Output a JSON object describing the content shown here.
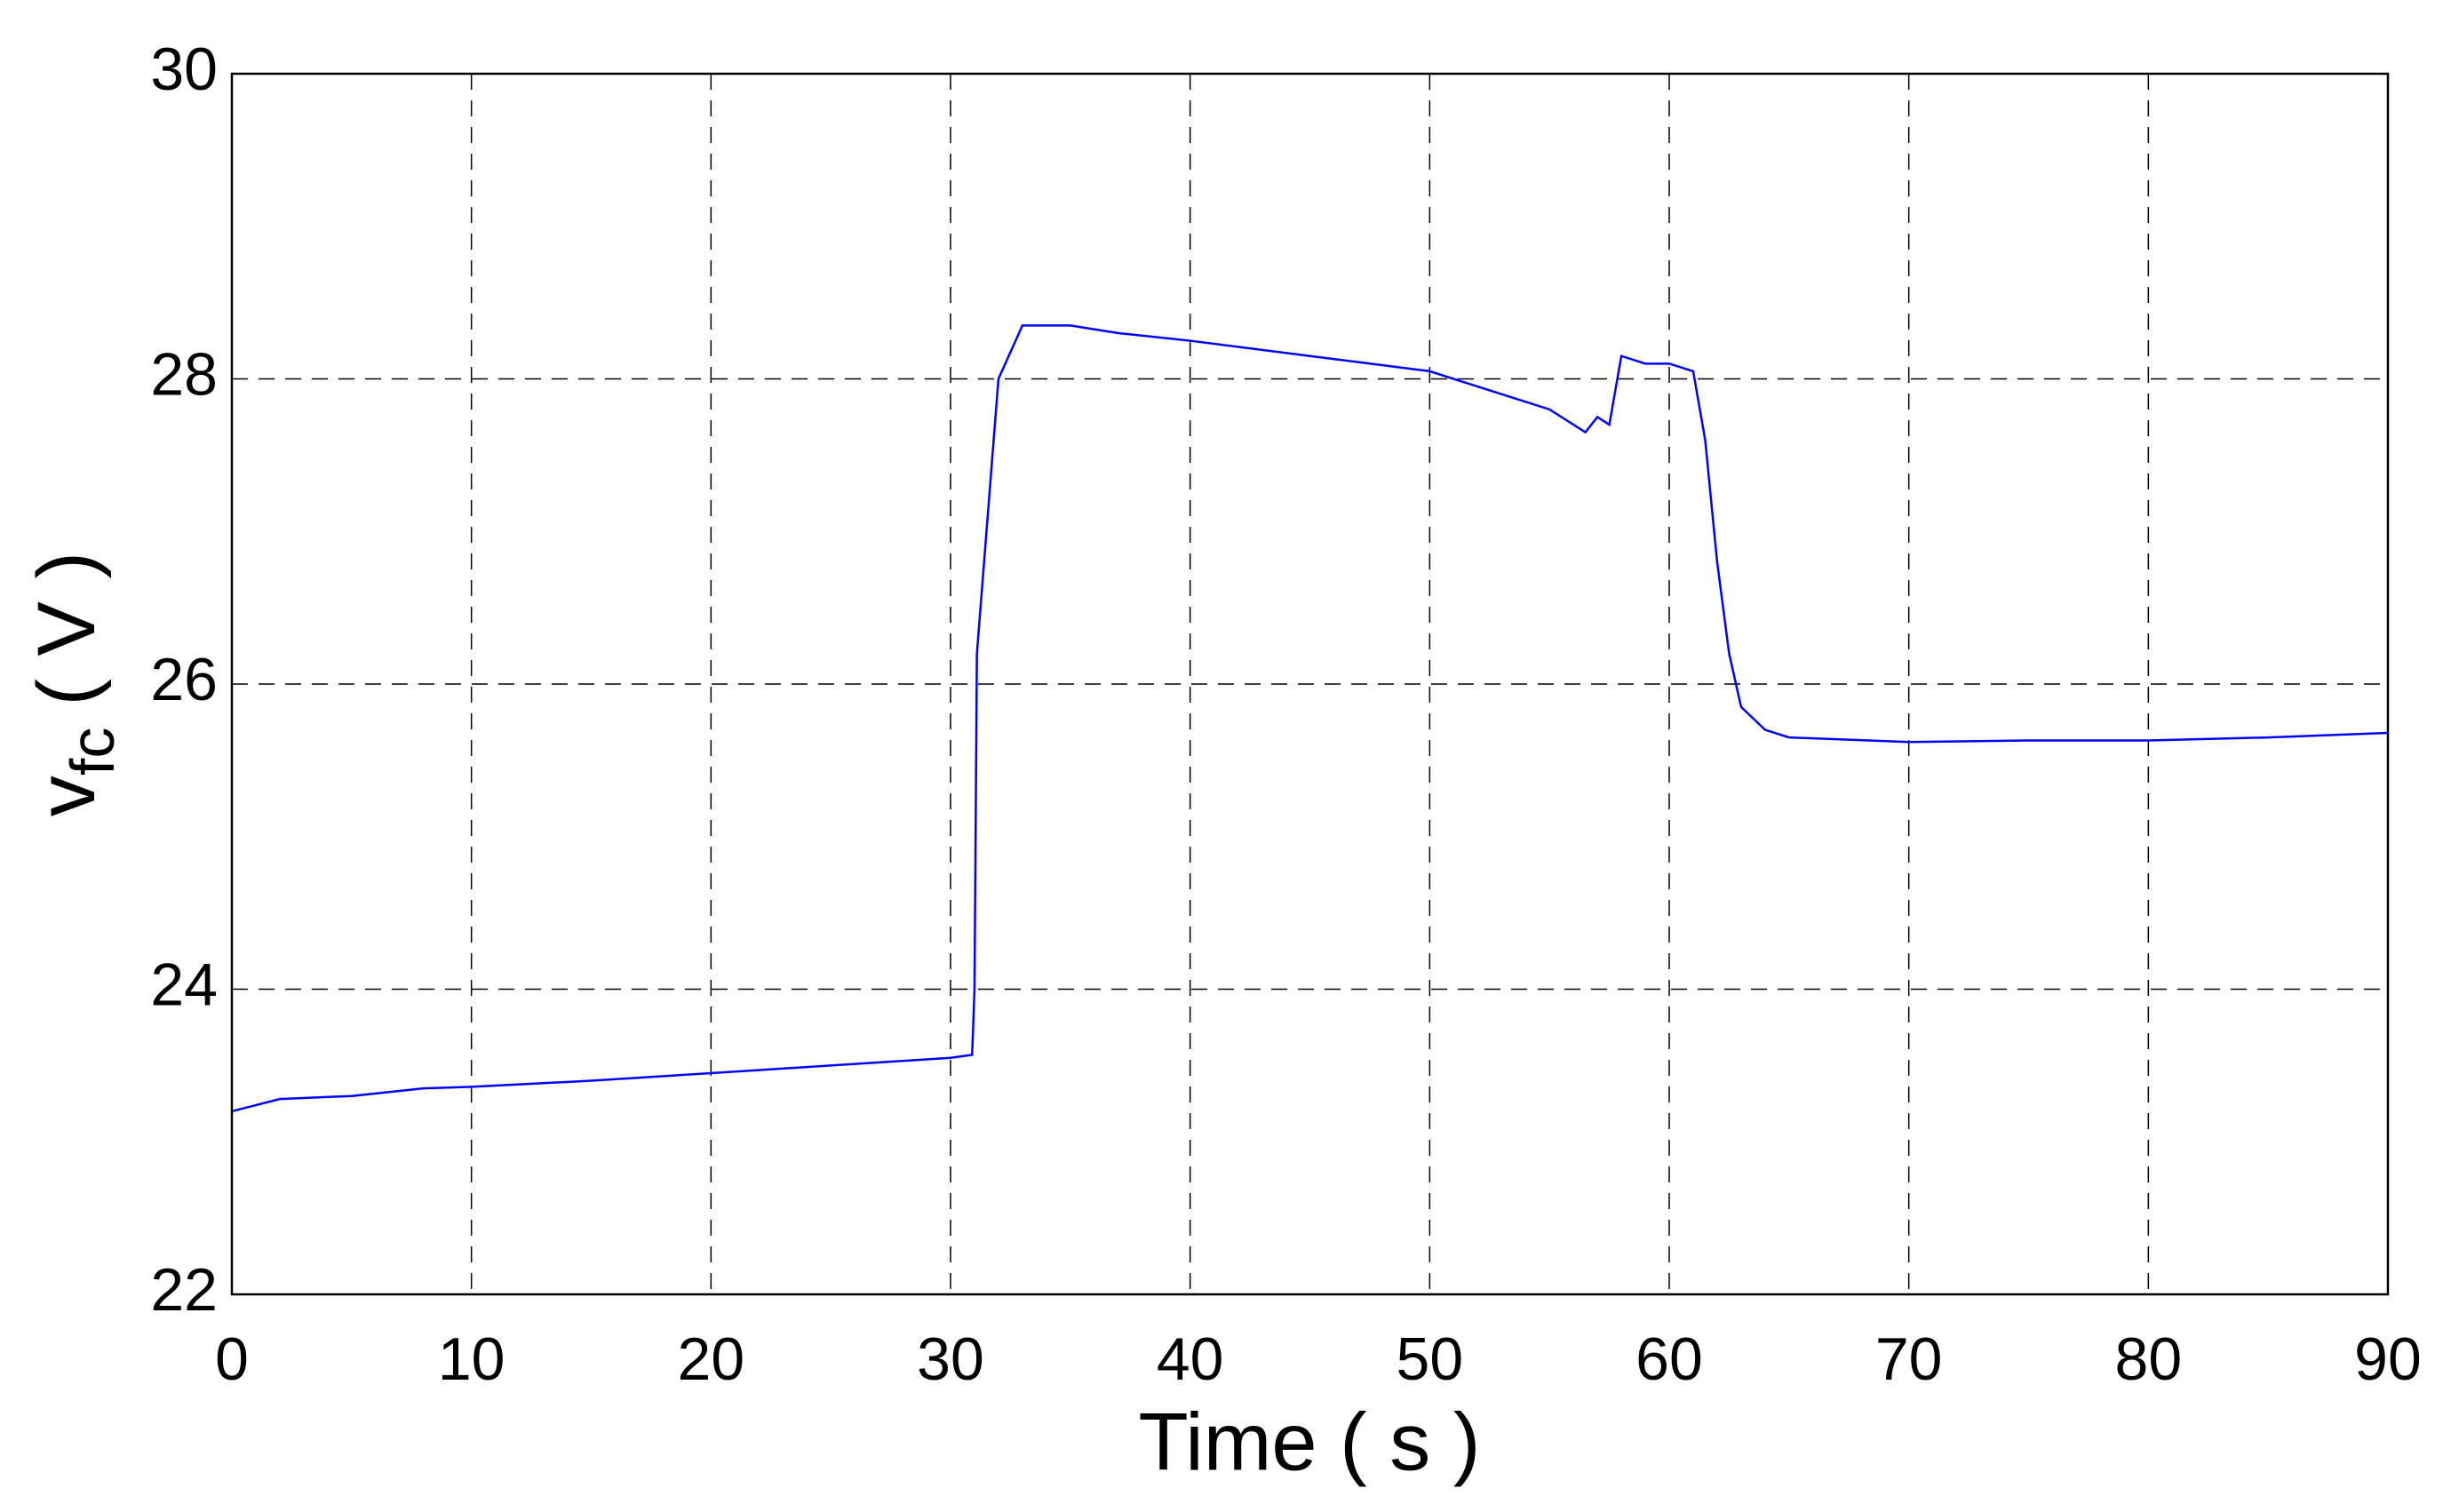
{
  "chart_data": {
    "type": "line",
    "xlabel": "Time ( s )",
    "ylabel": {
      "main": "v",
      "sub": "fc",
      "unit": "( V )"
    },
    "x": [
      0,
      2,
      5,
      8,
      10,
      15,
      20,
      25,
      30,
      30.9,
      31.0,
      31.1,
      31.5,
      32,
      33,
      35,
      37,
      40,
      45,
      50,
      53,
      55,
      56.5,
      57,
      57.5,
      58,
      59,
      60,
      61,
      61.5,
      62,
      62.5,
      63,
      64,
      65,
      70,
      75,
      80,
      85,
      90
    ],
    "values": [
      23.2,
      23.28,
      23.3,
      23.35,
      23.36,
      23.4,
      23.45,
      23.5,
      23.55,
      23.57,
      24.0,
      26.2,
      27.0,
      28.0,
      28.35,
      28.35,
      28.3,
      28.25,
      28.15,
      28.05,
      27.9,
      27.8,
      27.65,
      27.75,
      27.7,
      28.15,
      28.1,
      28.1,
      28.05,
      27.6,
      26.8,
      26.2,
      25.85,
      25.7,
      25.65,
      25.62,
      25.63,
      25.63,
      25.65,
      25.68
    ],
    "color": "#0000ff",
    "xlim": [
      0,
      90
    ],
    "xticks": [
      0,
      10,
      20,
      30,
      40,
      50,
      60,
      70,
      80,
      90
    ],
    "ylim": [
      22,
      30
    ],
    "yticks": [
      22,
      24,
      26,
      28,
      30
    ],
    "grid": true
  }
}
